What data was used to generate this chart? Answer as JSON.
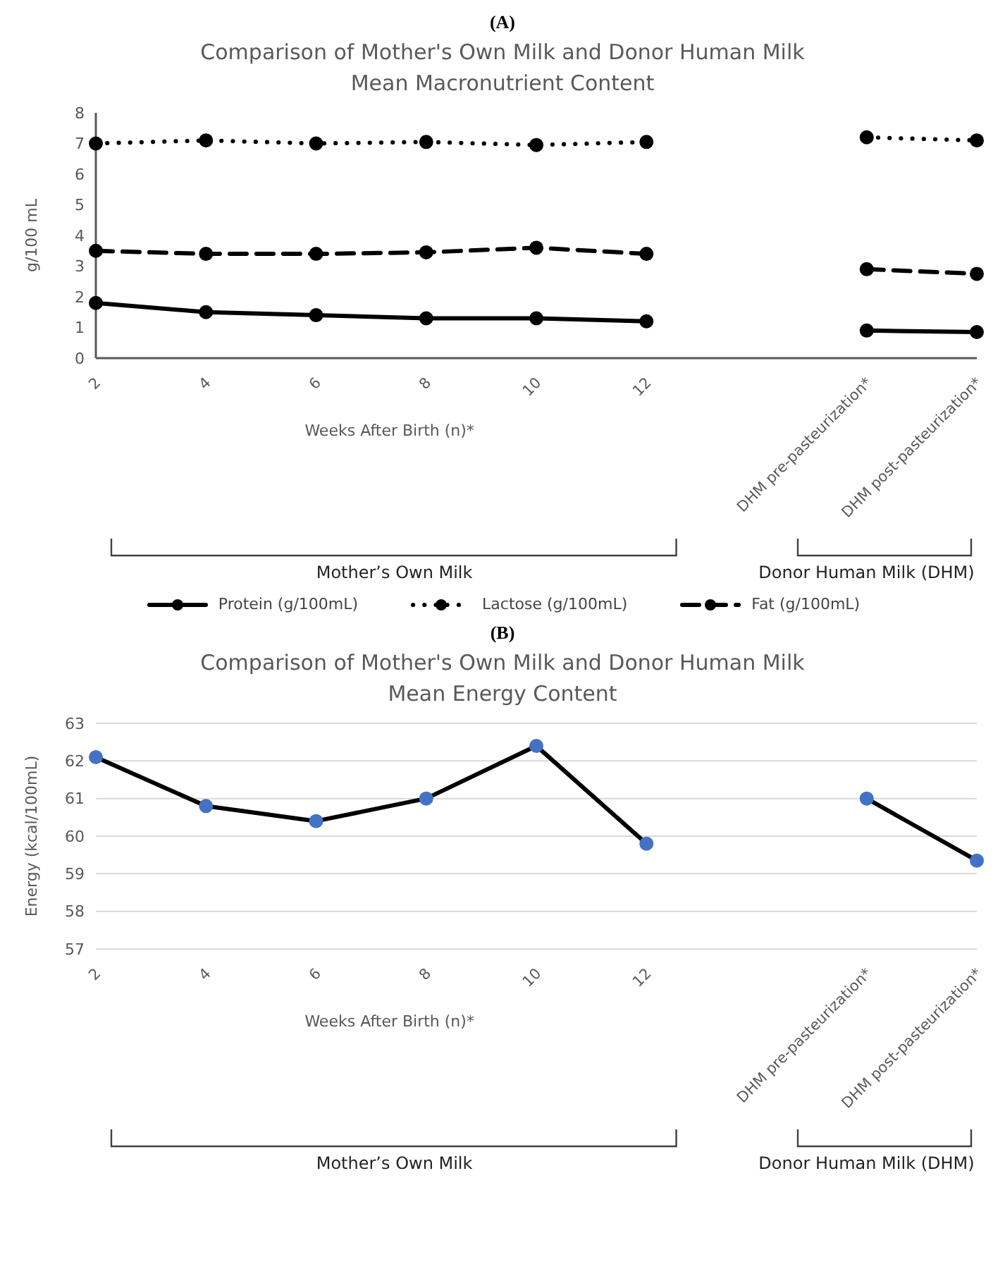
{
  "chart_data": [
    {
      "type": "line",
      "title": "Comparison of Mother's Own Milk and Donor Human Milk\nMean Macronutrient Content",
      "ylabel": "g/100 mL",
      "xlabel": "Weeks After Birth (n)*",
      "annotations": [
        "(A)",
        "Mother’s Own Milk",
        "Donor Human Milk (DHM)"
      ],
      "categories": [
        "2",
        "4",
        "6",
        "8",
        "10",
        "12",
        null,
        "DHM pre-pasteurization*",
        "DHM post-pasteurization*"
      ],
      "series": [
        {
          "name": "Protein (g/100mL)",
          "color": "#000000",
          "line_style": "solid",
          "values": [
            1.8,
            1.5,
            1.4,
            1.3,
            1.3,
            1.2,
            null,
            0.9,
            0.85
          ]
        },
        {
          "name": "Lactose (g/100mL)",
          "color": "#000000",
          "line_style": "dotted",
          "values": [
            7.0,
            7.1,
            7.0,
            7.05,
            6.95,
            7.05,
            null,
            7.2,
            7.1
          ]
        },
        {
          "name": "Fat (g/100mL)",
          "color": "#000000",
          "line_style": "dashed",
          "values": [
            3.5,
            3.4,
            3.4,
            3.45,
            3.6,
            3.4,
            null,
            2.9,
            2.75
          ]
        }
      ],
      "ylim": [
        0,
        8
      ],
      "yticks": [
        0,
        1,
        2,
        3,
        4,
        5,
        6,
        7,
        8
      ],
      "grid": false,
      "legend": "bottom",
      "marker": "circle"
    },
    {
      "type": "line",
      "title": "Comparison of Mother's Own Milk and Donor Human Milk\nMean Energy Content",
      "ylabel": "Energy (kcal/100mL)",
      "xlabel": "Weeks After Birth (n)*",
      "annotations": [
        "(B)",
        "Mother’s Own Milk",
        "Donor Human Milk (DHM)"
      ],
      "categories": [
        "2",
        "4",
        "6",
        "8",
        "10",
        "12",
        null,
        "DHM pre-pasteurization*",
        "DHM post-pasteurization*"
      ],
      "series": [
        {
          "color": "#000000",
          "line_style": "solid",
          "values": [
            62.1,
            60.8,
            60.4,
            61.0,
            62.4,
            59.8,
            null,
            61.0,
            59.35
          ]
        }
      ],
      "ylim": [
        57,
        63
      ],
      "yticks": [
        57,
        58,
        59,
        60,
        61,
        62,
        63
      ],
      "grid": "y",
      "legend": false,
      "marker": "circle"
    }
  ]
}
